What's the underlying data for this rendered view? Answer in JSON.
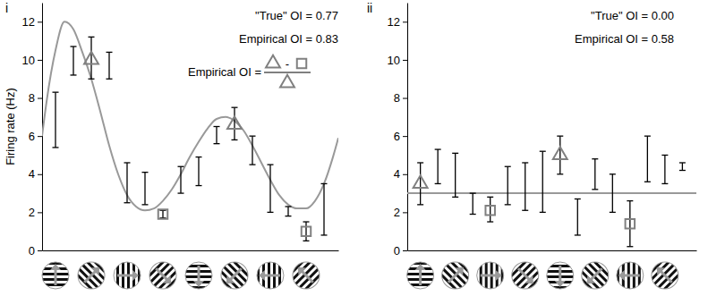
{
  "chart_data": [
    {
      "type": "line",
      "title": "i",
      "y_label": "Firing rate (Hz)",
      "xlim": [
        -0.75,
        15.8
      ],
      "ylim": [
        0,
        13
      ],
      "yticks": [
        0,
        2,
        4,
        6,
        8,
        10,
        12
      ],
      "tick_labels": "y",
      "grid": false,
      "annotations": [
        "\"True\" OI = 0.77",
        "Empirical OI = 0.83"
      ],
      "formula": [
        "Empirical OI =",
        "-"
      ],
      "curve": {
        "color": "#999999",
        "line_style": "solid",
        "x": [
          -0.75,
          -0.5,
          0,
          0.5,
          1,
          1.5,
          2,
          2.5,
          3,
          3.5,
          4,
          4.5,
          5,
          5.5,
          6,
          6.5,
          7,
          7.5,
          8,
          8.5,
          9,
          9.5,
          10,
          10.5,
          11,
          11.5,
          12,
          12.5,
          13,
          13.5,
          14,
          14.5,
          15,
          15.5,
          15.8
        ],
        "values": [
          6.0,
          7.8,
          10.5,
          12.0,
          11.6,
          10.4,
          9.0,
          7.3,
          5.5,
          4.0,
          2.9,
          2.3,
          2.1,
          2.2,
          2.6,
          3.2,
          4.0,
          4.9,
          5.7,
          6.4,
          6.9,
          7.0,
          6.8,
          6.3,
          5.5,
          4.6,
          3.7,
          2.9,
          2.4,
          2.2,
          2.2,
          2.6,
          3.5,
          4.9,
          5.9
        ]
      },
      "error_bars": {
        "color": "#000000",
        "x": [
          0,
          1,
          2,
          3,
          4,
          5,
          6,
          7,
          8,
          9,
          10,
          11,
          12,
          13,
          14,
          15
        ],
        "lower": [
          5.4,
          9.2,
          9.0,
          9.0,
          2.5,
          2.4,
          1.7,
          3.0,
          3.4,
          5.6,
          5.8,
          4.5,
          2.0,
          1.8,
          0.5,
          0.8
        ],
        "upper": [
          8.3,
          10.7,
          11.2,
          10.4,
          4.6,
          4.1,
          2.1,
          4.4,
          4.9,
          6.5,
          7.5,
          6.0,
          4.5,
          2.3,
          1.5,
          3.5
        ]
      },
      "preferred": {
        "marker": "triangle",
        "color": "#808080",
        "x": [
          2,
          10
        ],
        "values": [
          10.0,
          6.6
        ]
      },
      "orthogonal": {
        "marker": "square",
        "color": "#808080",
        "x": [
          6,
          14
        ],
        "values": [
          1.9,
          1.0
        ]
      }
    },
    {
      "type": "line",
      "title": "ii",
      "xlim": [
        -0.75,
        15.8
      ],
      "ylim": [
        0,
        13
      ],
      "yticks": [
        0,
        2,
        4,
        6,
        8,
        10,
        12
      ],
      "tick_labels": "y",
      "grid": false,
      "annotations": [
        "\"True\" OI = 0.00",
        "Empirical OI = 0.58"
      ],
      "curve": {
        "color": "#999999",
        "line_style": "solid",
        "x": [
          -0.75,
          15.8
        ],
        "values": [
          3.0,
          3.0
        ]
      },
      "error_bars": {
        "color": "#000000",
        "x": [
          0,
          1,
          2,
          3,
          4,
          5,
          6,
          7,
          8,
          9,
          10,
          11,
          12,
          13,
          14,
          15
        ],
        "lower": [
          2.4,
          3.5,
          2.8,
          1.9,
          1.5,
          2.4,
          2.1,
          2.0,
          4.0,
          0.8,
          3.2,
          2.0,
          0.2,
          3.6,
          3.5,
          4.2
        ],
        "upper": [
          4.6,
          5.3,
          5.1,
          3.0,
          2.8,
          4.4,
          4.6,
          5.2,
          6.0,
          2.7,
          4.8,
          4.0,
          2.6,
          6.0,
          5.0,
          4.6
        ]
      },
      "preferred": {
        "marker": "triangle",
        "color": "#808080",
        "x": [
          0,
          8
        ],
        "values": [
          3.5,
          5.0
        ]
      },
      "orthogonal": {
        "marker": "square",
        "color": "#808080",
        "x": [
          4,
          12
        ],
        "values": [
          2.1,
          1.4
        ]
      }
    }
  ]
}
